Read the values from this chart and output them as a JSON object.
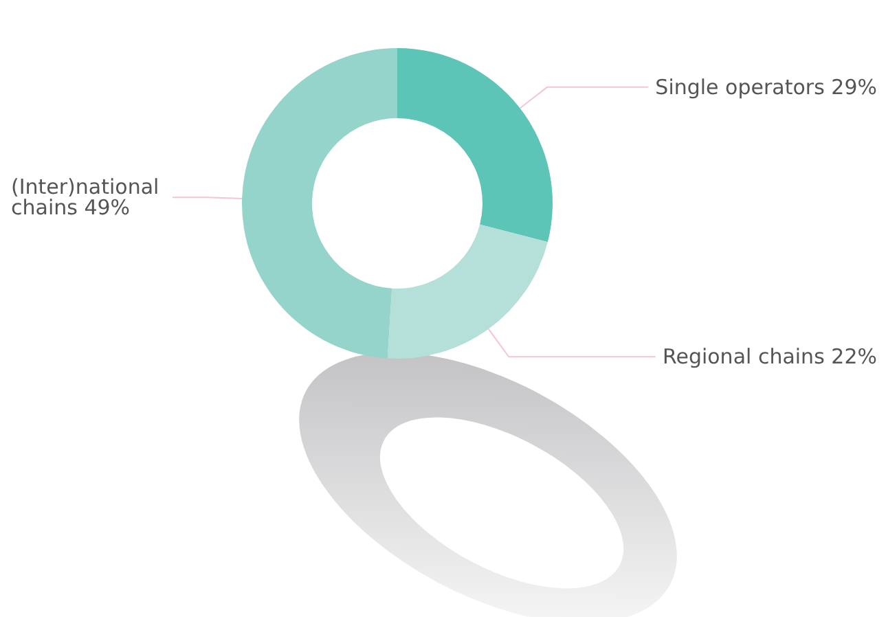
{
  "chart_data": {
    "type": "donut",
    "categories": [
      "Single operators",
      "Regional chains",
      "(Inter)national chains"
    ],
    "values": [
      29,
      22,
      49
    ],
    "value_labels": [
      "29%",
      "22%",
      "49%"
    ],
    "colors": [
      "#5dc4b8",
      "#b5e0da",
      "#94d4ca"
    ]
  }
}
